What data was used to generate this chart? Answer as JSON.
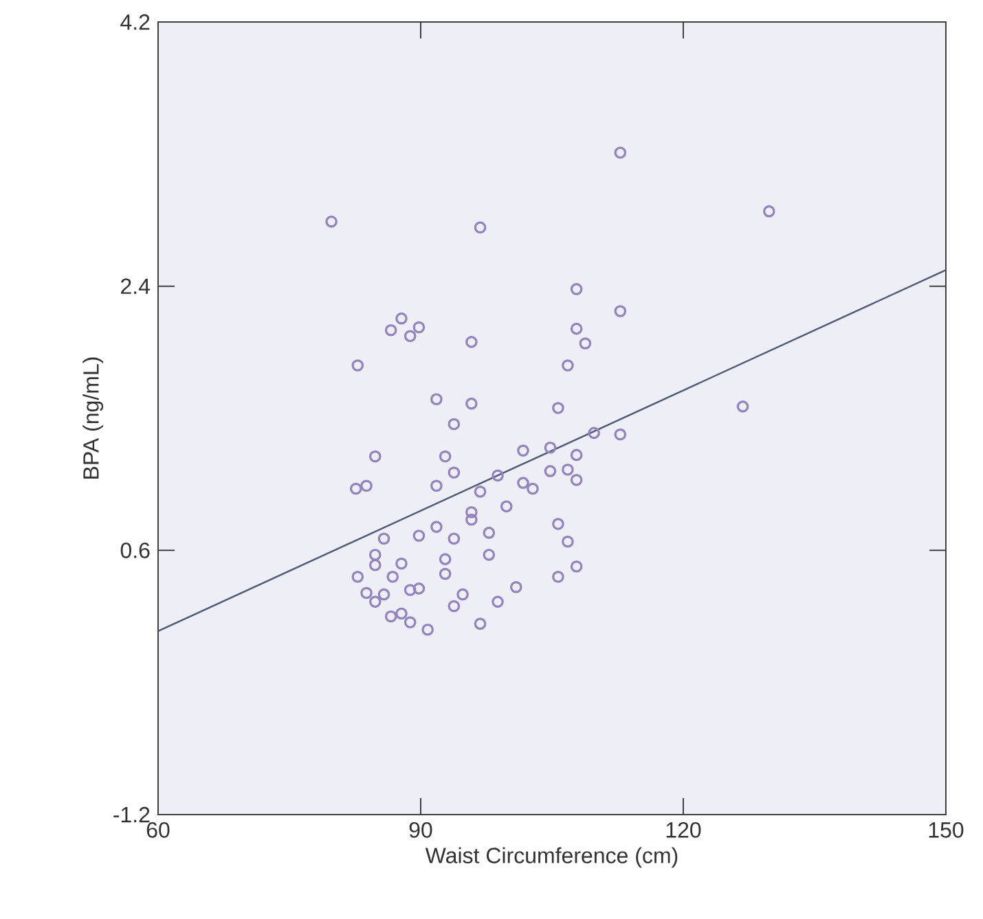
{
  "chart_data": {
    "type": "scatter",
    "xlabel": "Waist Circumference (cm)",
    "ylabel": "BPA (ng/mL)",
    "xlim": [
      60,
      150
    ],
    "xticks": [
      60,
      90,
      120,
      150
    ],
    "ylim": [
      -1.2,
      4.2
    ],
    "yticks": [
      -1.2,
      0.6,
      2.4,
      4.2
    ],
    "grid": false,
    "series": [
      {
        "color": "#9382bd",
        "marker": "circle",
        "x": [
          112.8,
          79.8,
          96.8,
          129.8,
          107.8,
          112.8,
          87.8,
          86.6,
          88.8,
          89.8,
          95.8,
          107.8,
          108.8,
          82.8,
          106.8,
          91.8,
          95.8,
          105.7,
          126.8,
          93.8,
          109.8,
          112.8,
          84.8,
          92.8,
          101.7,
          104.8,
          107.8,
          93.8,
          82.6,
          83.8,
          91.8,
          98.8,
          104.8,
          106.8,
          107.8,
          96.8,
          101.7,
          102.8,
          99.8,
          95.8,
          95.8,
          91.8,
          89.8,
          93.8,
          97.8,
          85.8,
          105.7,
          106.8,
          84.8,
          84.8,
          87.8,
          92.8,
          92.8,
          97.8,
          107.8,
          105.7,
          82.8,
          86.8,
          83.8,
          85.8,
          84.8,
          88.8,
          89.8,
          94.8,
          93.8,
          98.8,
          100.9,
          86.6,
          87.8,
          88.8,
          90.8,
          96.8
        ],
        "values": [
          3.31,
          2.84,
          2.8,
          2.91,
          2.38,
          2.23,
          2.18,
          2.1,
          2.06,
          2.12,
          2.02,
          2.11,
          2.01,
          1.86,
          1.86,
          1.63,
          1.6,
          1.57,
          1.58,
          1.46,
          1.4,
          1.39,
          1.24,
          1.24,
          1.28,
          1.3,
          1.25,
          1.13,
          1.02,
          1.04,
          1.04,
          1.11,
          1.14,
          1.15,
          1.08,
          1.0,
          1.06,
          1.02,
          0.9,
          0.86,
          0.81,
          0.76,
          0.7,
          0.68,
          0.72,
          0.68,
          0.78,
          0.66,
          0.57,
          0.5,
          0.51,
          0.54,
          0.44,
          0.57,
          0.49,
          0.42,
          0.42,
          0.42,
          0.31,
          0.3,
          0.25,
          0.33,
          0.34,
          0.3,
          0.22,
          0.25,
          0.35,
          0.15,
          0.17,
          0.11,
          0.06,
          0.1
        ]
      },
      {
        "type": "line",
        "color": "#4d5a78",
        "line_style": "solid",
        "x": [
          60,
          150
        ],
        "values": [
          0.05,
          2.51
        ]
      }
    ]
  }
}
